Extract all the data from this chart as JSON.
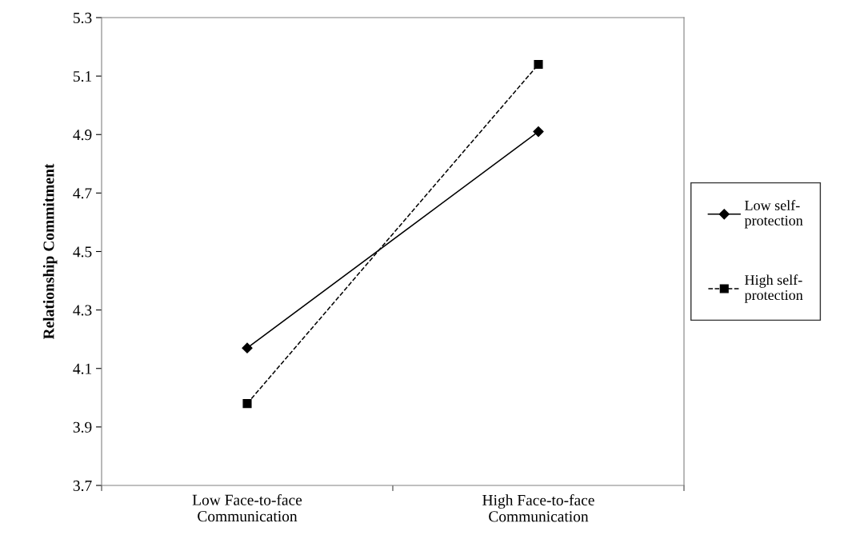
{
  "chart_data": {
    "type": "line",
    "ylabel": "Relationship Commitment",
    "categories": [
      "Low Face-to-face\nCommunication",
      "High Face-to-face\nCommunication"
    ],
    "series": [
      {
        "name": "Low self-\nprotection",
        "color": "#000000",
        "values": [
          4.17,
          4.91
        ],
        "marker": "diamond",
        "line_style": "solid"
      },
      {
        "name": "High self-\nprotection",
        "color": "#000000",
        "values": [
          3.98,
          5.14
        ],
        "marker": "square",
        "line_style": "dashed"
      }
    ],
    "ylim": [
      3.7,
      5.3
    ],
    "yticks": [
      {
        "value": 3.7,
        "label": "3.7"
      },
      {
        "value": 3.9,
        "label": "3.9"
      },
      {
        "value": 4.1,
        "label": "4.1"
      },
      {
        "value": 4.3,
        "label": "4.3"
      },
      {
        "value": 4.5,
        "label": "4.5"
      },
      {
        "value": 4.7,
        "label": "4.7"
      },
      {
        "value": 4.9,
        "label": "4.9"
      },
      {
        "value": 5.1,
        "label": "5.1"
      },
      {
        "value": 5.3,
        "label": "5.3"
      }
    ],
    "grid": false,
    "legend": "right"
  }
}
